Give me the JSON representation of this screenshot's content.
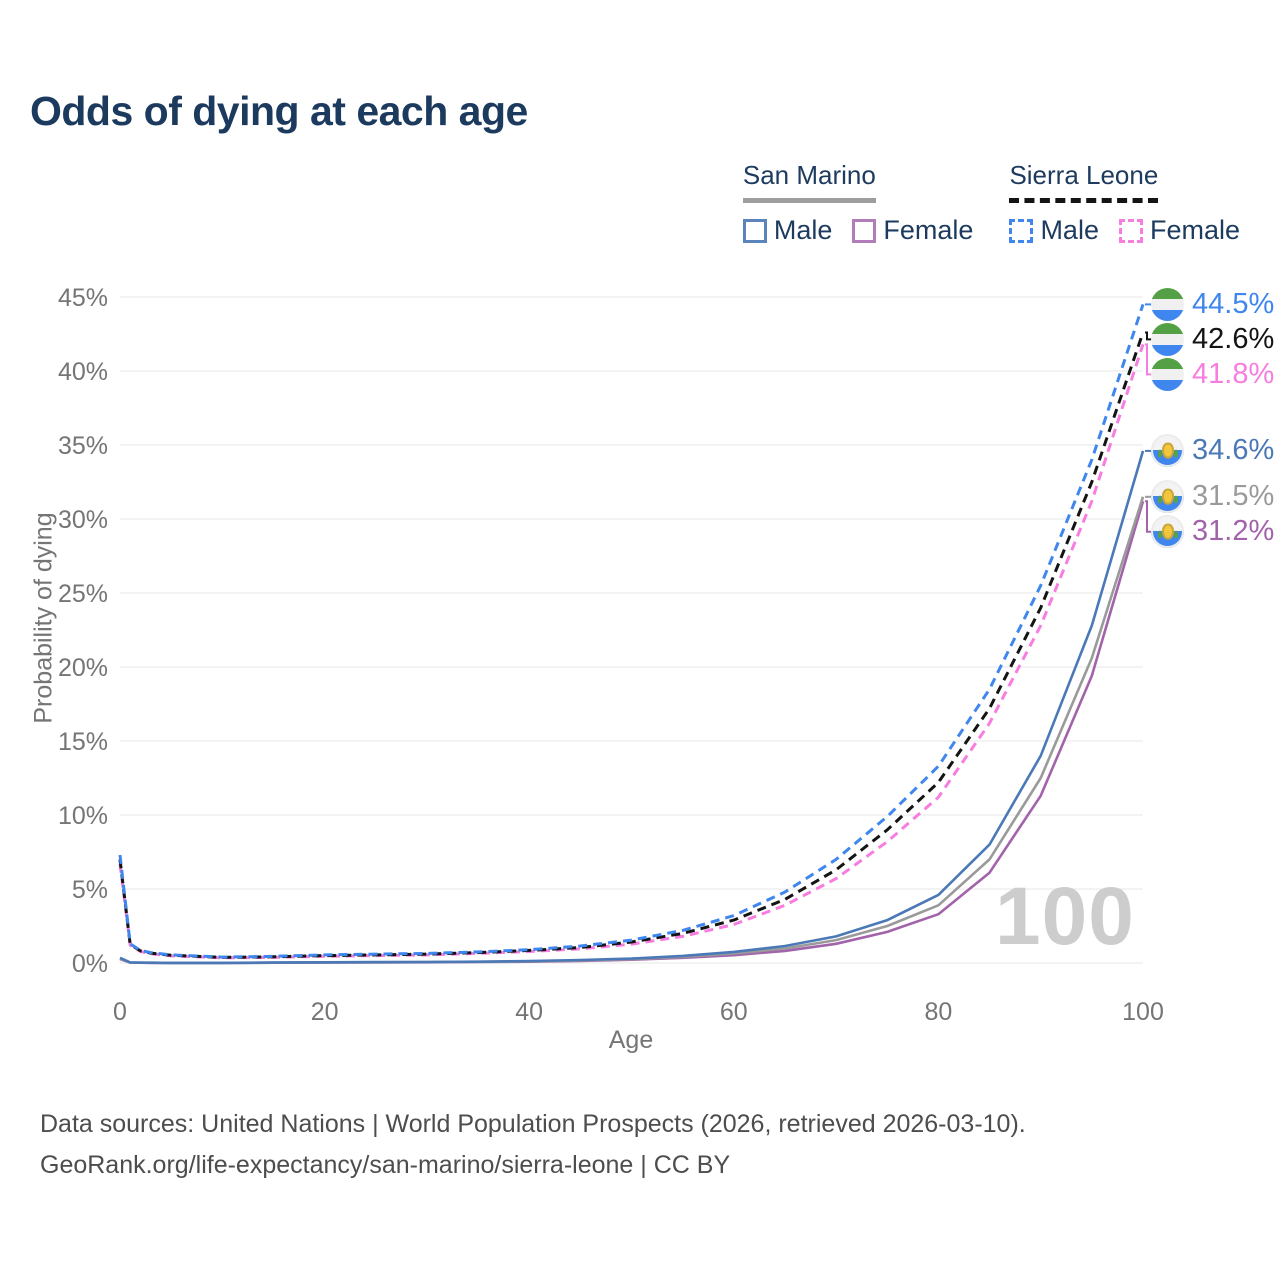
{
  "title": "Odds of dying at each age",
  "watermark": "100",
  "legend": {
    "groups": [
      {
        "name": "San Marino",
        "line_style": "solid",
        "line_color": "#9e9e9e",
        "items": [
          {
            "label": "Male",
            "color": "#4b79b7"
          },
          {
            "label": "Female",
            "color": "#a263aa"
          }
        ]
      },
      {
        "name": "Sierra Leone",
        "line_style": "dashed",
        "line_color": "#141414",
        "items": [
          {
            "label": "Male",
            "color": "#3f86ee"
          },
          {
            "label": "Female",
            "color": "#f77de0"
          }
        ]
      }
    ]
  },
  "footer": {
    "line1": "Data sources: United Nations | World Population Prospects (2026, retrieved 2026-03-10).",
    "line2": "GeoRank.org/life-expectancy/san-marino/sierra-leone | CC BY"
  },
  "chart_data": {
    "type": "line",
    "title": "Odds of dying at each age",
    "xlabel": "Age",
    "ylabel": "Probability of dying",
    "xlim": [
      0,
      100
    ],
    "ylim_percent": [
      0,
      45
    ],
    "grid": "horizontal-only",
    "legend_position": "top-right",
    "x_ticks": [
      0,
      20,
      40,
      60,
      80,
      100
    ],
    "y_ticks_percent": [
      0,
      5,
      10,
      15,
      20,
      25,
      30,
      35,
      40,
      45
    ],
    "y_tick_labels": [
      "0%",
      "5%",
      "10%",
      "15%",
      "20%",
      "25%",
      "30%",
      "35%",
      "40%",
      "45%"
    ],
    "x": [
      0,
      1,
      2,
      3,
      5,
      10,
      15,
      20,
      25,
      30,
      35,
      40,
      45,
      50,
      55,
      60,
      65,
      70,
      75,
      80,
      85,
      90,
      95,
      100
    ],
    "series": [
      {
        "name": "Sierra Leone Male",
        "country": "Sierra Leone",
        "sex": "male",
        "flag": "sierra-leone",
        "color": "#3f86ee",
        "dashed": true,
        "end_label": "44.5%",
        "values": [
          7.3,
          1.3,
          0.85,
          0.7,
          0.55,
          0.4,
          0.45,
          0.55,
          0.6,
          0.65,
          0.75,
          0.9,
          1.15,
          1.55,
          2.2,
          3.2,
          4.8,
          7.0,
          9.9,
          13.3,
          18.5,
          25.5,
          34.0,
          44.5
        ]
      },
      {
        "name": "Sierra Leone Total",
        "country": "Sierra Leone",
        "sex": "both",
        "flag": "sierra-leone",
        "color": "#141414",
        "dashed": true,
        "end_label": "42.6%",
        "values": [
          7.0,
          1.25,
          0.82,
          0.67,
          0.52,
          0.38,
          0.42,
          0.5,
          0.55,
          0.6,
          0.7,
          0.85,
          1.05,
          1.42,
          2.0,
          2.9,
          4.3,
          6.3,
          9.0,
          12.2,
          17.2,
          24.0,
          32.5,
          42.6
        ]
      },
      {
        "name": "Sierra Leone Female",
        "country": "Sierra Leone",
        "sex": "female",
        "flag": "sierra-leone",
        "color": "#f77de0",
        "dashed": true,
        "end_label": "41.8%",
        "values": [
          6.7,
          1.2,
          0.78,
          0.63,
          0.48,
          0.35,
          0.38,
          0.45,
          0.5,
          0.55,
          0.65,
          0.78,
          0.95,
          1.28,
          1.8,
          2.6,
          3.9,
          5.7,
          8.2,
          11.2,
          16.2,
          22.8,
          31.2,
          41.8
        ]
      },
      {
        "name": "San Marino Male",
        "country": "San Marino",
        "sex": "male",
        "flag": "san-marino",
        "color": "#4b79b7",
        "dashed": false,
        "end_label": "34.6%",
        "values": [
          0.35,
          0.04,
          0.02,
          0.02,
          0.01,
          0.01,
          0.03,
          0.05,
          0.06,
          0.07,
          0.09,
          0.13,
          0.2,
          0.3,
          0.48,
          0.75,
          1.15,
          1.8,
          2.9,
          4.6,
          8.0,
          14.0,
          22.8,
          34.6
        ]
      },
      {
        "name": "San Marino Total",
        "country": "San Marino",
        "sex": "both",
        "flag": "san-marino",
        "color": "#9a9a9a",
        "dashed": false,
        "end_label": "31.5%",
        "values": [
          0.3,
          0.03,
          0.02,
          0.02,
          0.01,
          0.01,
          0.02,
          0.04,
          0.05,
          0.06,
          0.08,
          0.11,
          0.17,
          0.26,
          0.42,
          0.64,
          0.98,
          1.55,
          2.5,
          3.9,
          7.0,
          12.5,
          20.6,
          31.5
        ]
      },
      {
        "name": "San Marino Female",
        "country": "San Marino",
        "sex": "female",
        "flag": "san-marino",
        "color": "#a263aa",
        "dashed": false,
        "end_label": "31.2%",
        "values": [
          0.27,
          0.03,
          0.02,
          0.01,
          0.01,
          0.01,
          0.02,
          0.03,
          0.04,
          0.05,
          0.07,
          0.09,
          0.14,
          0.22,
          0.35,
          0.53,
          0.82,
          1.3,
          2.1,
          3.3,
          6.1,
          11.3,
          19.4,
          31.2
        ]
      }
    ]
  }
}
